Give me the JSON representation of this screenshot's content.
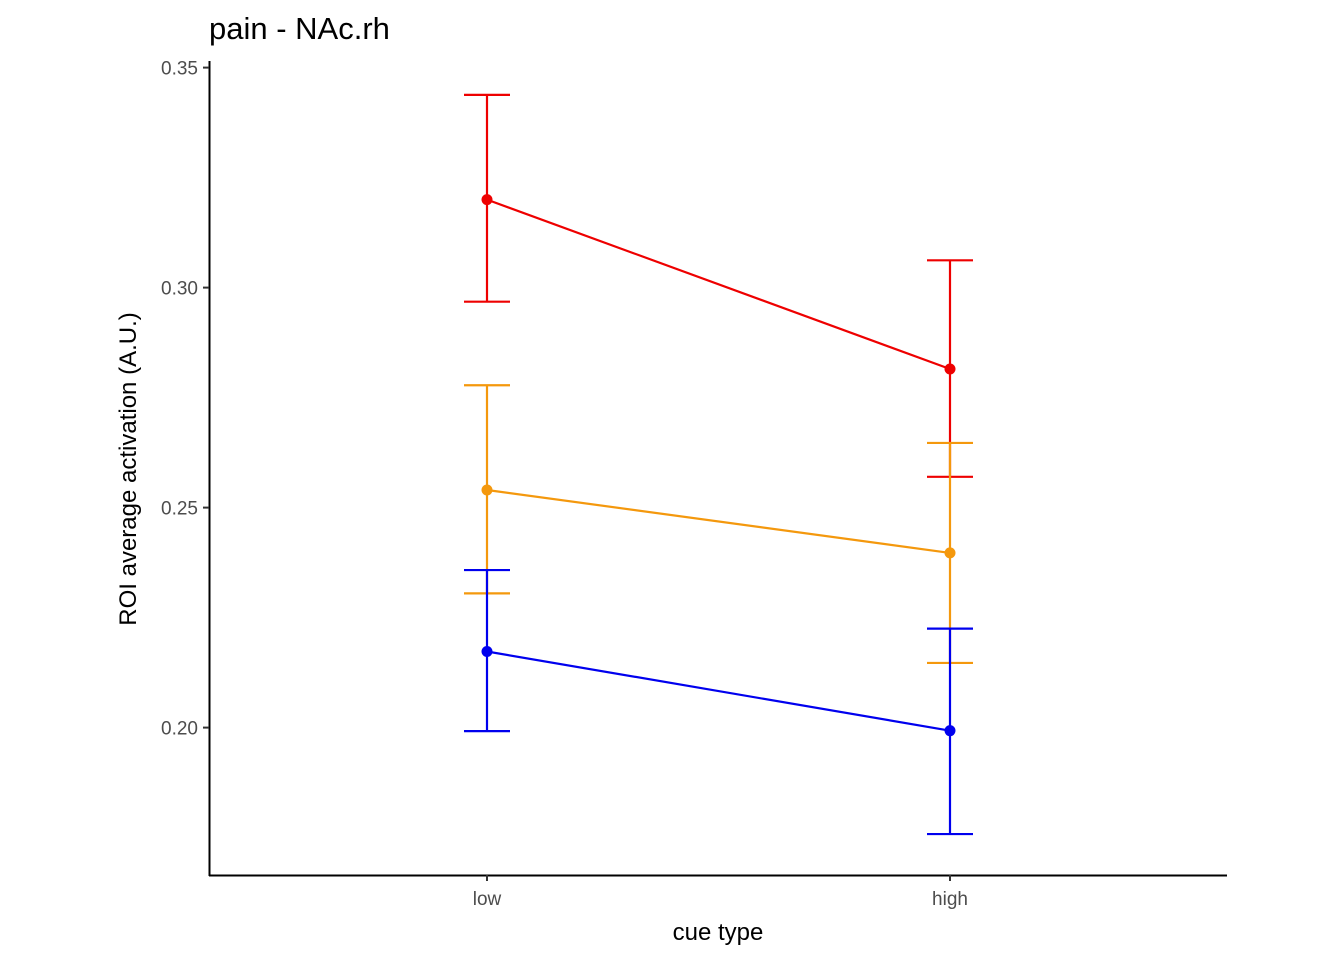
{
  "chart_data": {
    "type": "line",
    "title": "pain  -  NAc.rh",
    "xlabel": "cue type",
    "ylabel": "ROI average activation (A.U.)",
    "categories": [
      "low",
      "high"
    ],
    "ylim": [
      0.1665,
      0.3515
    ],
    "yticks": [
      0.2,
      0.25,
      0.3,
      0.35
    ],
    "ytick_labels": [
      "0.20",
      "0.25",
      "0.30",
      "0.35"
    ],
    "grid": false,
    "legend": "none",
    "series": [
      {
        "color": "#ee0000",
        "values": [
          0.32,
          0.2815
        ],
        "err_low": [
          0.2968,
          0.257
        ],
        "err_high": [
          0.3438,
          0.3062
        ]
      },
      {
        "color": "#f4980d",
        "values": [
          0.254,
          0.2397
        ],
        "err_low": [
          0.2305,
          0.2147
        ],
        "err_high": [
          0.2778,
          0.2647
        ]
      },
      {
        "color": "#0000ee",
        "values": [
          0.2173,
          0.1993
        ],
        "err_low": [
          0.1992,
          0.1758
        ],
        "err_high": [
          0.2358,
          0.2225
        ]
      }
    ]
  }
}
